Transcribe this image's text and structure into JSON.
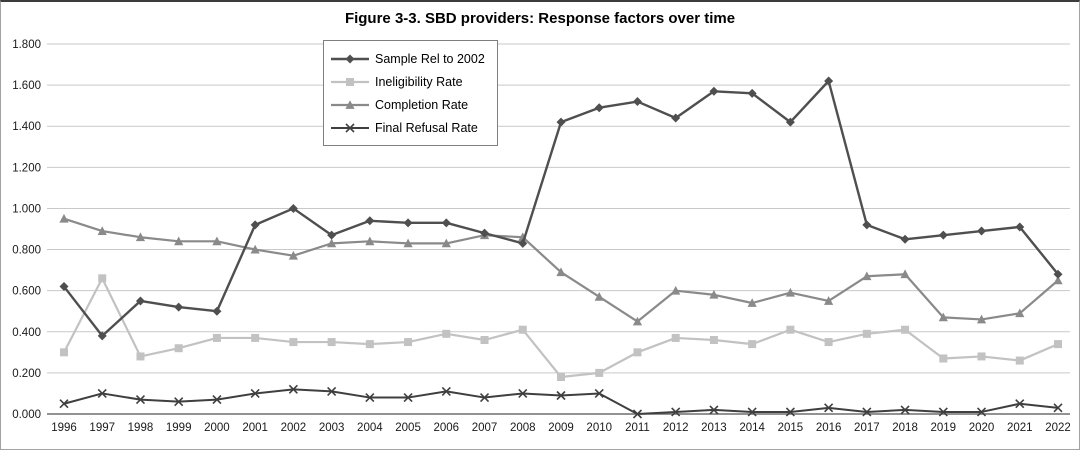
{
  "chart_data": {
    "type": "line",
    "title": "Figure 3-3. SBD providers: Response factors over time",
    "categories": [
      "1996",
      "1997",
      "1998",
      "1999",
      "2000",
      "2001",
      "2002",
      "2003",
      "2004",
      "2005",
      "2006",
      "2007",
      "2008",
      "2009",
      "2010",
      "2011",
      "2012",
      "2013",
      "2014",
      "2015",
      "2016",
      "2017",
      "2018",
      "2019",
      "2020",
      "2021",
      "2022"
    ],
    "y_tick_labels": [
      "0.000",
      "0.200",
      "0.400",
      "0.600",
      "0.800",
      "1.000",
      "1.200",
      "1.400",
      "1.600",
      "1.800"
    ],
    "ylim": [
      0,
      1.8
    ],
    "grid": "horizontal",
    "legend_position": "top-left-inside",
    "colors": {
      "grid": "#c9c9c9",
      "axis": "#6e6e6e",
      "tick_text": "#1a1a1a"
    },
    "series": [
      {
        "name": "Sample Rel to 2002",
        "marker": "diamond",
        "color": "#4f4f4f",
        "line_width": 2.4,
        "values": [
          0.62,
          0.38,
          0.55,
          0.52,
          0.5,
          0.92,
          1.0,
          0.87,
          0.94,
          0.93,
          0.93,
          0.88,
          0.83,
          1.42,
          1.49,
          1.52,
          1.44,
          1.57,
          1.56,
          1.42,
          1.62,
          0.92,
          0.85,
          0.87,
          0.89,
          0.91,
          0.68
        ]
      },
      {
        "name": "Ineligibility Rate",
        "marker": "square",
        "color": "#c2c2c2",
        "line_width": 2.2,
        "values": [
          0.3,
          0.66,
          0.28,
          0.32,
          0.37,
          0.37,
          0.35,
          0.35,
          0.34,
          0.35,
          0.39,
          0.36,
          0.41,
          0.18,
          0.2,
          0.3,
          0.37,
          0.36,
          0.34,
          0.41,
          0.35,
          0.39,
          0.41,
          0.27,
          0.28,
          0.26,
          0.34
        ]
      },
      {
        "name": "Completion Rate",
        "marker": "triangle",
        "color": "#8a8a8a",
        "line_width": 2.2,
        "values": [
          0.95,
          0.89,
          0.86,
          0.84,
          0.84,
          0.8,
          0.77,
          0.83,
          0.84,
          0.83,
          0.83,
          0.87,
          0.86,
          0.69,
          0.57,
          0.45,
          0.6,
          0.58,
          0.54,
          0.59,
          0.55,
          0.67,
          0.68,
          0.47,
          0.46,
          0.49,
          0.65
        ]
      },
      {
        "name": "Final Refusal Rate",
        "marker": "x",
        "color": "#3f3f3f",
        "line_width": 2,
        "values": [
          0.05,
          0.1,
          0.07,
          0.06,
          0.07,
          0.1,
          0.12,
          0.11,
          0.08,
          0.08,
          0.11,
          0.08,
          0.1,
          0.09,
          0.1,
          0.0,
          0.01,
          0.02,
          0.01,
          0.01,
          0.03,
          0.01,
          0.02,
          0.01,
          0.01,
          0.05,
          0.03
        ]
      }
    ]
  }
}
